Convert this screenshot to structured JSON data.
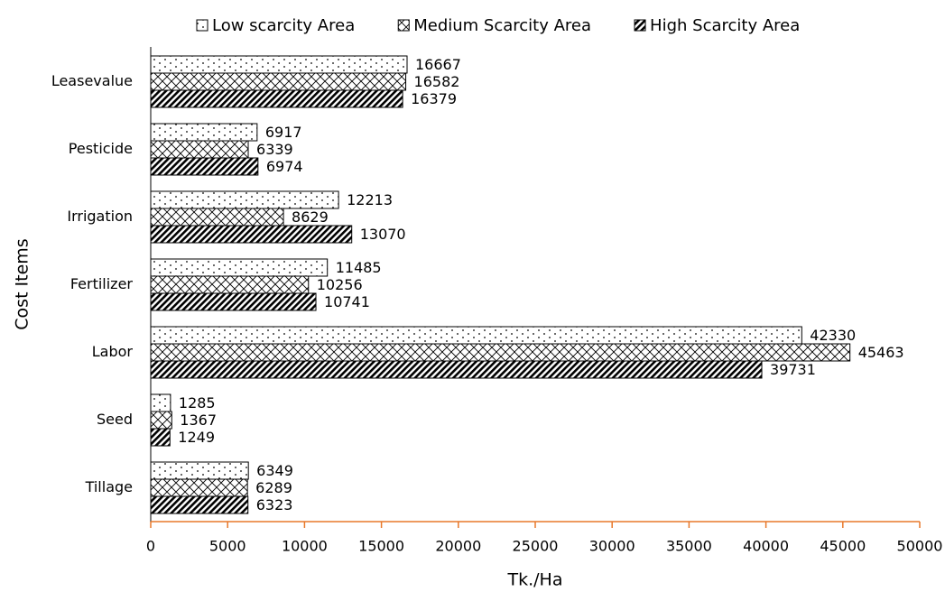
{
  "chart_data": {
    "type": "hbar",
    "x_label": "Tk./Ha",
    "y_label": "Cost Items",
    "categories": [
      "Leasevalue",
      "Pesticide",
      "Irrigation",
      "Fertilizer",
      "Labor",
      "Seed",
      "Tillage"
    ],
    "series": [
      {
        "name": "Low scarcity Area",
        "color": "#000000",
        "pattern": "dots",
        "values": [
          16667,
          6917,
          12213,
          11485,
          42330,
          1285,
          6349
        ]
      },
      {
        "name": "Medium Scarcity Area",
        "color": "#000000",
        "pattern": "crosshatch",
        "values": [
          16582,
          6339,
          8629,
          10256,
          45463,
          1367,
          6289
        ]
      },
      {
        "name": "High Scarcity Area",
        "color": "#000000",
        "pattern": "diagonal",
        "values": [
          16379,
          6974,
          13070,
          10741,
          39731,
          1249,
          6323
        ]
      }
    ],
    "xlim": [
      0,
      50000
    ],
    "xticks": [
      0,
      5000,
      10000,
      15000,
      20000,
      25000,
      30000,
      35000,
      40000,
      45000,
      50000
    ],
    "axis_color": "#e8782a",
    "legend": "top"
  }
}
